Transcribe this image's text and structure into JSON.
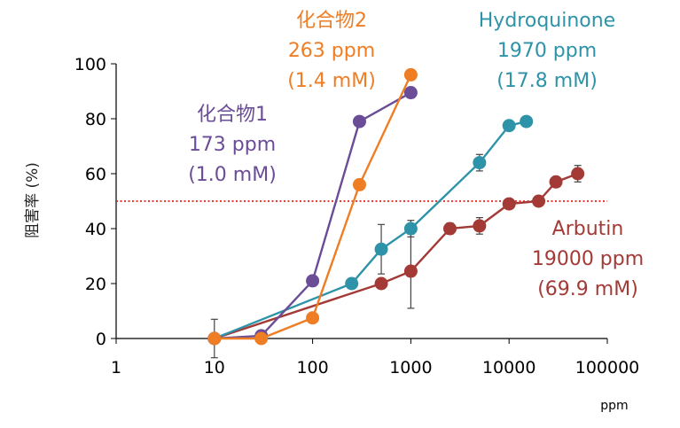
{
  "chart_data": {
    "type": "line",
    "x_scale": "log",
    "xlim": [
      1,
      100000
    ],
    "ylim": [
      0,
      100
    ],
    "x_ticks": [
      "1",
      "10",
      "100",
      "1000",
      "10000",
      "100000"
    ],
    "y_ticks": [
      "0",
      "20",
      "40",
      "60",
      "80",
      "100"
    ],
    "xlabel": "ppm",
    "ylabel": "阻害率 (%)",
    "threshold_line": {
      "y": 50,
      "style": "dotted",
      "color": "#e8211b"
    },
    "series": [
      {
        "name": "Arbutin",
        "color": "#a33a36",
        "points": [
          {
            "x": 10,
            "y": 0,
            "err": 7
          },
          {
            "x": 500,
            "y": 20
          },
          {
            "x": 1000,
            "y": 24.5,
            "err": 13.5
          },
          {
            "x": 2500,
            "y": 40,
            "err": 2
          },
          {
            "x": 5000,
            "y": 41,
            "err": 3
          },
          {
            "x": 10000,
            "y": 49
          },
          {
            "x": 20000,
            "y": 50
          },
          {
            "x": 30000,
            "y": 57
          },
          {
            "x": 50000,
            "y": 60,
            "err": 3
          }
        ]
      },
      {
        "name": "Hydroquinone",
        "color": "#2e93a8",
        "points": [
          {
            "x": 10,
            "y": 0
          },
          {
            "x": 250,
            "y": 20
          },
          {
            "x": 500,
            "y": 32.5,
            "err": 9
          },
          {
            "x": 1000,
            "y": 40,
            "err": 3
          },
          {
            "x": 5000,
            "y": 64,
            "err": 3
          },
          {
            "x": 10000,
            "y": 77.5
          },
          {
            "x": 15000,
            "y": 79
          }
        ]
      },
      {
        "name": "化合物1",
        "color": "#6a4d96",
        "points": [
          {
            "x": 10,
            "y": 0
          },
          {
            "x": 30,
            "y": 1
          },
          {
            "x": 100,
            "y": 21
          },
          {
            "x": 300,
            "y": 79
          },
          {
            "x": 1000,
            "y": 89.5
          }
        ]
      },
      {
        "name": "化合物2",
        "color": "#ee7d24",
        "points": [
          {
            "x": 10,
            "y": 0
          },
          {
            "x": 30,
            "y": 0
          },
          {
            "x": 100,
            "y": 7.5
          },
          {
            "x": 300,
            "y": 56
          },
          {
            "x": 1000,
            "y": 96
          }
        ]
      }
    ],
    "annotations": [
      {
        "series": "化合物2",
        "color": "#ee7d24",
        "lines": [
          "化合物2",
          "263 ppm",
          "(1.4 mM)"
        ]
      },
      {
        "series": "Hydroquinone",
        "color": "#2e93a8",
        "lines": [
          "Hydroquinone",
          "1970 ppm",
          "(17.8 mM)"
        ]
      },
      {
        "series": "化合物1",
        "color": "#6a4d96",
        "lines": [
          "化合物1",
          "173 ppm",
          "(1.0 mM)"
        ]
      },
      {
        "series": "Arbutin",
        "color": "#a33a36",
        "lines": [
          "Arbutin",
          "19000 ppm",
          "(69.9 mM)"
        ]
      }
    ]
  }
}
